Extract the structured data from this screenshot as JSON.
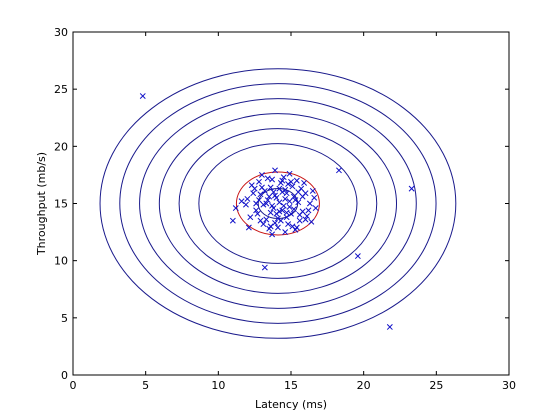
{
  "chart_data": {
    "type": "scatter",
    "title": "",
    "xlabel": "Latency (ms)",
    "ylabel": "Throughput (mb/s)",
    "xlim": [
      0,
      30
    ],
    "ylim": [
      0,
      30
    ],
    "xticks": [
      0,
      5,
      10,
      15,
      20,
      25,
      30
    ],
    "yticks": [
      0,
      5,
      10,
      15,
      20,
      25,
      30
    ],
    "grid": false,
    "legend": "none",
    "colors": {
      "points": "#1010c8",
      "contours": "#1a1a8c",
      "highlight": "#c81414"
    },
    "gaussian": {
      "mu": [
        14.1,
        15.0
      ],
      "sigma": [
        1.36,
        1.31
      ]
    },
    "contour_radii": [
      1.0,
      4.0,
      5.0,
      6.0,
      7.0,
      8.0,
      9.0
    ],
    "highlight_radius": 2.1,
    "series": [
      {
        "marker": "x",
        "points": [
          [
            4.8,
            24.4
          ],
          [
            21.8,
            4.2
          ],
          [
            23.3,
            16.3
          ],
          [
            19.6,
            10.4
          ],
          [
            18.3,
            17.9
          ],
          [
            13.2,
            9.4
          ],
          [
            11.0,
            13.5
          ],
          [
            11.6,
            15.2
          ],
          [
            11.2,
            14.6
          ],
          [
            13.7,
            12.3
          ],
          [
            13.9,
            17.9
          ],
          [
            12.1,
            12.9
          ],
          [
            14.2,
            15.1
          ],
          [
            13.8,
            14.6
          ],
          [
            14.6,
            15.4
          ],
          [
            13.4,
            15.3
          ],
          [
            14.9,
            14.7
          ],
          [
            15.2,
            15.6
          ],
          [
            13.1,
            14.9
          ],
          [
            14.4,
            16.0
          ],
          [
            14.0,
            14.1
          ],
          [
            15.5,
            15.1
          ],
          [
            12.9,
            15.8
          ],
          [
            14.7,
            13.8
          ],
          [
            13.6,
            16.4
          ],
          [
            15.8,
            14.3
          ],
          [
            12.6,
            14.4
          ],
          [
            14.3,
            16.8
          ],
          [
            16.0,
            15.9
          ],
          [
            13.3,
            13.6
          ],
          [
            15.1,
            16.5
          ],
          [
            12.4,
            15.9
          ],
          [
            14.8,
            13.2
          ],
          [
            16.3,
            15.0
          ],
          [
            13.7,
            17.1
          ],
          [
            12.2,
            13.8
          ],
          [
            15.6,
            13.5
          ],
          [
            14.1,
            12.9
          ],
          [
            16.5,
            16.1
          ],
          [
            12.8,
            16.9
          ],
          [
            13.9,
            13.3
          ],
          [
            15.4,
            17.0
          ],
          [
            11.9,
            14.9
          ],
          [
            16.1,
            13.9
          ],
          [
            14.5,
            17.3
          ],
          [
            13.5,
            12.8
          ],
          [
            15.9,
            16.8
          ],
          [
            12.5,
            16.3
          ],
          [
            14.6,
            12.5
          ],
          [
            16.7,
            14.6
          ],
          [
            13.0,
            17.5
          ],
          [
            15.3,
            12.7
          ],
          [
            12.0,
            15.4
          ],
          [
            14.9,
            17.6
          ],
          [
            16.4,
            13.4
          ],
          [
            13.2,
            16.1
          ],
          [
            14.4,
            14.4
          ],
          [
            13.9,
            15.7
          ],
          [
            14.7,
            15.9
          ],
          [
            13.6,
            14.2
          ],
          [
            15.0,
            14.1
          ],
          [
            14.2,
            16.3
          ],
          [
            13.3,
            15.0
          ],
          [
            15.3,
            15.3
          ],
          [
            14.0,
            15.5
          ],
          [
            14.5,
            14.8
          ],
          [
            12.7,
            14.1
          ],
          [
            15.7,
            16.3
          ],
          [
            13.1,
            13.2
          ],
          [
            14.8,
            16.7
          ],
          [
            16.2,
            14.4
          ],
          [
            12.9,
            13.5
          ],
          [
            15.4,
            12.9
          ],
          [
            14.3,
            13.5
          ],
          [
            13.4,
            17.2
          ],
          [
            16.6,
            15.5
          ],
          [
            12.3,
            16.6
          ],
          [
            15.1,
            13.0
          ],
          [
            13.8,
            16.0
          ],
          [
            14.1,
            13.7
          ],
          [
            15.5,
            16.0
          ],
          [
            12.6,
            15.0
          ],
          [
            14.6,
            16.2
          ],
          [
            13.7,
            14.8
          ],
          [
            15.8,
            15.6
          ],
          [
            14.9,
            15.2
          ],
          [
            13.5,
            15.6
          ],
          [
            14.2,
            14.3
          ],
          [
            15.2,
            14.5
          ],
          [
            13.0,
            16.4
          ],
          [
            14.4,
            17.0
          ],
          [
            16.0,
            13.6
          ],
          [
            12.8,
            15.3
          ],
          [
            15.6,
            14.0
          ],
          [
            13.6,
            13.0
          ],
          [
            14.7,
            14.2
          ],
          [
            15.0,
            16.9
          ]
        ]
      }
    ]
  }
}
